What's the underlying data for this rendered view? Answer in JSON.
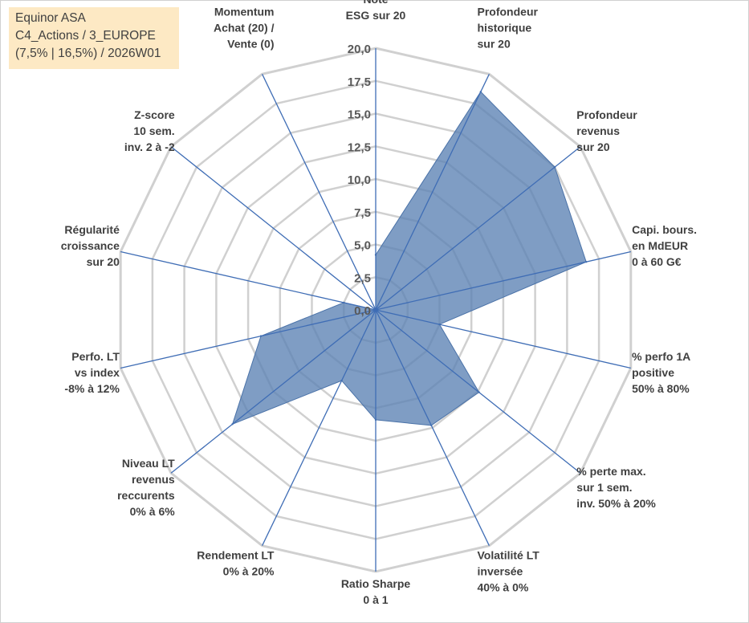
{
  "info": {
    "title": "Equinor ASA",
    "line2": "C4_Actions / 3_EUROPE",
    "line3": "(7,5% | 16,5%) / 2026W01"
  },
  "chart_data": {
    "type": "radar",
    "title": "Equinor ASA",
    "range": [
      0,
      20
    ],
    "ticks": [
      "0,0",
      "2,5",
      "5,0",
      "7,5",
      "10,0",
      "12,5",
      "15,0",
      "17,5",
      "20,0"
    ],
    "axes": [
      [
        "Note",
        "ESG sur 20"
      ],
      [
        "Profondeur",
        "historique",
        "sur 20"
      ],
      [
        "Profondeur",
        "revenus",
        "sur 20"
      ],
      [
        "Capi. bours.",
        "en MdEUR",
        "0 à 60 G€"
      ],
      [
        "% perfo 1A",
        "positive",
        "50% à 80%"
      ],
      [
        "% perte max.",
        "sur 1 sem.",
        "inv. 50% à 20%"
      ],
      [
        "Volatilité LT",
        "inversée",
        "40% à 0%"
      ],
      [
        "Ratio Sharpe",
        "0 à 1"
      ],
      [
        "Rendement LT",
        "0% à 20%"
      ],
      [
        "Niveau LT",
        "revenus",
        "reccurents",
        "0% à 6%"
      ],
      [
        "Perfo. LT",
        "vs index",
        "-8% à 12%"
      ],
      [
        "Régularité",
        "croissance",
        "sur 20"
      ],
      [
        "Z-score",
        "10 sem.",
        "inv. 2 à -2"
      ],
      [
        "Momentum",
        "Achat (20) /",
        "Vente (0)"
      ]
    ],
    "series": [
      {
        "name": "Equinor ASA",
        "color": "#5b82b4",
        "values": [
          4.2,
          18.5,
          17.5,
          16.5,
          5.0,
          10.1,
          9.8,
          8.4,
          6.0,
          14.0,
          9.0,
          2.5,
          0.0,
          0.0
        ]
      }
    ],
    "grid": true
  }
}
